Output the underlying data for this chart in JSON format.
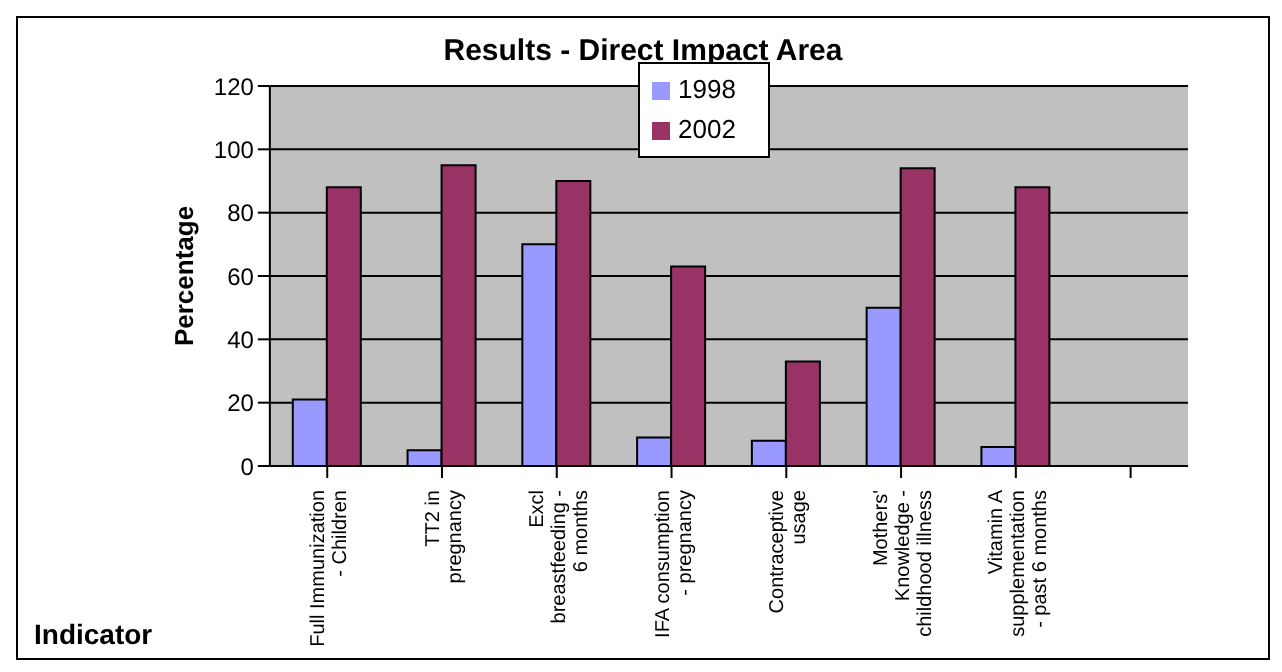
{
  "chart_data": {
    "type": "bar",
    "title": "Results - Direct Impact Area",
    "xlabel": "Indicator",
    "ylabel": "Percentage",
    "categories": [
      "Full Immunization\n- Children",
      "TT2 in\npregnancy",
      "Excl\nbreastfeeding -\n6 months",
      "IFA consumption\n- pregnancy",
      "Contraceptive\nusage",
      "Mothers'\nKnowledge -\nchildhood illness",
      "Vitamin A\nsupplementation\n- past 6 months",
      null
    ],
    "series": [
      {
        "name": "1998",
        "color": "#9999ff",
        "values": [
          21,
          5,
          70,
          9,
          8,
          50,
          6,
          null
        ]
      },
      {
        "name": "2002",
        "color": "#993366",
        "values": [
          88,
          95,
          90,
          63,
          33,
          94,
          88,
          null
        ]
      }
    ],
    "ylim": [
      0,
      120
    ],
    "yticks": [
      0,
      20,
      40,
      60,
      80,
      100,
      120
    ],
    "grid": "y",
    "legend": "top"
  }
}
